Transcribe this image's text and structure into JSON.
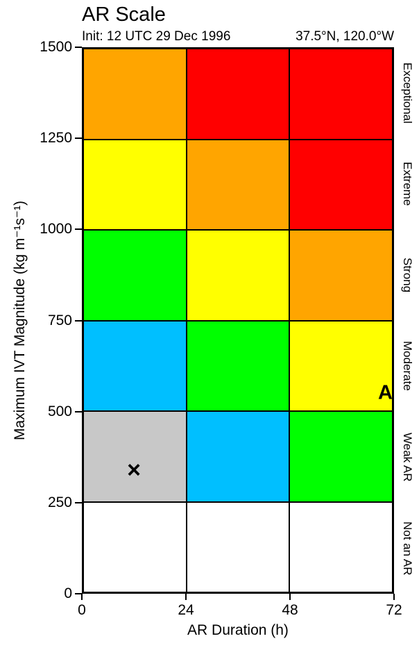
{
  "title": "AR Scale",
  "subtitle_left": "Init: 12 UTC 29 Dec 1996",
  "subtitle_right": "37.5°N, 120.0°W",
  "chart_data": {
    "type": "heatmap",
    "title": "AR Scale",
    "subtitle": "Init: 12 UTC 29 Dec 1996   37.5°N, 120.0°W",
    "xlabel": "AR Duration (h)",
    "ylabel": "Maximum IVT Magnitude (kg m⁻¹s⁻¹)",
    "xlim": [
      0,
      72
    ],
    "ylim": [
      0,
      1500
    ],
    "x_ticks": [
      0,
      24,
      48,
      72
    ],
    "y_ticks": [
      0,
      250,
      500,
      750,
      1000,
      1250,
      1500
    ],
    "x_bin_edges_hours": [
      0,
      24,
      48,
      72
    ],
    "y_bin_edges_ivt": [
      0,
      250,
      500,
      750,
      1000,
      1250,
      1500
    ],
    "row_labels_top_to_bottom": [
      "Exceptional",
      "Extreme",
      "Strong",
      "Moderate",
      "Weak AR",
      "Not an AR"
    ],
    "cell_colors_top_to_bottom": [
      [
        "#FFA500",
        "#FF0000",
        "#FF0000"
      ],
      [
        "#FFFF00",
        "#FFA500",
        "#FF0000"
      ],
      [
        "#00FF00",
        "#FFFF00",
        "#FFA500"
      ],
      [
        "#00BFFF",
        "#00FF00",
        "#FFFF00"
      ],
      [
        "#C8C8C8",
        "#00BFFF",
        "#00FF00"
      ],
      [
        "#FFFFFF",
        "#FFFFFF",
        "#FFFFFF"
      ]
    ],
    "palette": {
      "exceptional_red": "#FF0000",
      "extreme_orange": "#FFA500",
      "strong_yellow": "#FFFF00",
      "moderate_green": "#00FF00",
      "weak_cyan": "#00BFFF",
      "not_ar_gray": "#C8C8C8",
      "empty_white": "#FFFFFF",
      "line_black": "#000000"
    },
    "markers": [
      {
        "symbol": "×",
        "name": "observed-point-marker",
        "x": 12,
        "y": 340
      },
      {
        "symbol": "A",
        "name": "ar-category-marker",
        "x": 70,
        "y": 550
      }
    ]
  }
}
